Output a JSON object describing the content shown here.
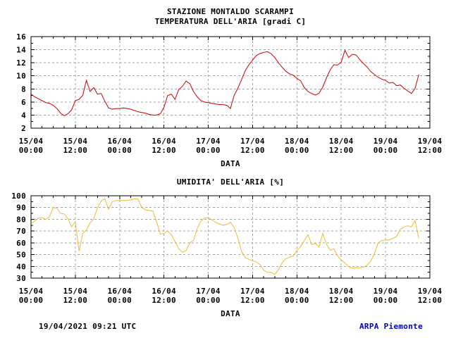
{
  "page": {
    "station_title": "STAZIONE MONTALDO SCARAMPI",
    "footer_timestamp": "19/04/2021 09:21 UTC",
    "footer_source": "ARPA Piemonte"
  },
  "colors": {
    "background": "#FFFFFF",
    "axis": "#000000",
    "grid": "#A6A6A6",
    "temperature_line": "#CC0000",
    "humidity_line": "#EEBB33",
    "source_text": "#0000CC"
  },
  "chart_data": [
    {
      "type": "line",
      "title": "TEMPERATURA DELL'ARIA [gradi C]",
      "xlabel": "DATA",
      "ylabel": "",
      "ylim": [
        2,
        16
      ],
      "y_tick_labels": [
        2,
        4,
        6,
        8,
        10,
        12,
        14,
        16
      ],
      "y_major_tick": 2,
      "y_minor_tick": 1,
      "x_range_hours": 108,
      "x_major_tick_hours": 12,
      "x_minor_tick_hours": 3,
      "grid": "dashed",
      "legend": "none",
      "x_tick_labels": [
        [
          "15/04",
          "00:00"
        ],
        [
          "15/04",
          "12:00"
        ],
        [
          "16/04",
          "00:00"
        ],
        [
          "16/04",
          "12:00"
        ],
        [
          "17/04",
          "00:00"
        ],
        [
          "17/04",
          "12:00"
        ],
        [
          "18/04",
          "00:00"
        ],
        [
          "18/04",
          "12:00"
        ],
        [
          "19/04",
          "00:00"
        ],
        [
          "19/04",
          "12:00"
        ]
      ],
      "series": [
        {
          "name": "temperatura",
          "color": "#CC0000",
          "start_hour": 0,
          "step_hours": 1,
          "values": [
            7.2,
            6.8,
            6.5,
            6.2,
            5.9,
            5.8,
            5.5,
            5.0,
            4.3,
            3.9,
            4.2,
            4.8,
            6.2,
            6.4,
            7.0,
            9.3,
            7.6,
            8.2,
            7.2,
            7.3,
            6.1,
            5.1,
            4.9,
            5.0,
            5.0,
            5.1,
            5.0,
            4.9,
            4.7,
            4.5,
            4.4,
            4.3,
            4.1,
            4.0,
            4.0,
            4.2,
            5.2,
            7.0,
            7.2,
            6.4,
            7.9,
            8.4,
            9.2,
            8.8,
            7.6,
            6.8,
            6.2,
            6.0,
            5.9,
            5.8,
            5.7,
            5.6,
            5.6,
            5.5,
            5.0,
            7.0,
            8.1,
            9.4,
            10.8,
            11.7,
            12.4,
            13.1,
            13.4,
            13.6,
            13.7,
            13.4,
            12.8,
            12.0,
            11.3,
            10.7,
            10.3,
            10.1,
            9.6,
            9.25,
            8.2,
            7.6,
            7.3,
            7.05,
            7.35,
            8.3,
            9.7,
            10.9,
            11.7,
            11.65,
            12.1,
            13.9,
            12.8,
            13.3,
            13.2,
            12.5,
            11.9,
            11.35,
            10.65,
            10.2,
            9.8,
            9.5,
            9.3,
            8.9,
            9.0,
            8.5,
            8.6,
            8.1,
            7.7,
            7.3,
            8.1,
            10.2
          ]
        }
      ]
    },
    {
      "type": "line",
      "title": "UMIDITA' DELL'ARIA [%]",
      "xlabel": "DATA",
      "ylabel": "",
      "ylim": [
        30,
        100
      ],
      "y_tick_labels": [
        30,
        40,
        50,
        60,
        70,
        80,
        90,
        100
      ],
      "y_major_tick": 10,
      "y_minor_tick": 5,
      "x_range_hours": 108,
      "x_major_tick_hours": 12,
      "x_minor_tick_hours": 3,
      "grid": "dashed",
      "legend": "none",
      "x_tick_labels": [
        [
          "15/04",
          "00:00"
        ],
        [
          "15/04",
          "12:00"
        ],
        [
          "16/04",
          "00:00"
        ],
        [
          "16/04",
          "12:00"
        ],
        [
          "17/04",
          "00:00"
        ],
        [
          "17/04",
          "12:00"
        ],
        [
          "18/04",
          "00:00"
        ],
        [
          "18/04",
          "12:00"
        ],
        [
          "19/04",
          "00:00"
        ],
        [
          "19/04",
          "12:00"
        ]
      ],
      "series": [
        {
          "name": "umidita",
          "color": "#EEBB33",
          "start_hour": 0,
          "step_hours": 1,
          "values": [
            76,
            78.5,
            81,
            81.5,
            80,
            82,
            90,
            89.5,
            85,
            84.5,
            80.5,
            73.5,
            78,
            53,
            68,
            71,
            77,
            80.5,
            90,
            95.5,
            97.5,
            88.5,
            95,
            96,
            96,
            96,
            96,
            96.5,
            97.5,
            97,
            90,
            88,
            87.5,
            87,
            78,
            67.5,
            68,
            70,
            67,
            61,
            55,
            52,
            53.5,
            60,
            62,
            72,
            78.5,
            81,
            81.5,
            79.5,
            77.5,
            76,
            75,
            75.5,
            77.5,
            73,
            64,
            53,
            47.5,
            46,
            44.8,
            43.8,
            41.5,
            36.8,
            34.8,
            35.1,
            33.2,
            37.3,
            43,
            46.5,
            47.8,
            48.8,
            53.5,
            57,
            62,
            67,
            58.5,
            59.5,
            56.5,
            68,
            59,
            53.5,
            55,
            49,
            45.5,
            42.8,
            39.8,
            38.5,
            38.9,
            38.5,
            39.3,
            41,
            44.5,
            51,
            60,
            62,
            62.3,
            62.6,
            63.8,
            65.5,
            71.5,
            73.5,
            74.5,
            73.5,
            79,
            63.5
          ]
        }
      ]
    }
  ]
}
